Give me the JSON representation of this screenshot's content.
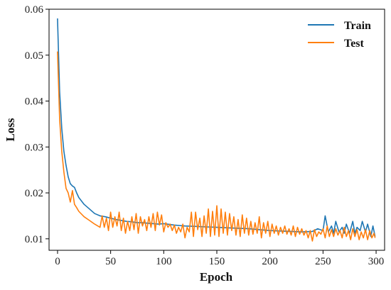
{
  "chart_data": {
    "type": "line",
    "xlabel": "Epoch",
    "ylabel": "Loss",
    "xlim": [
      -8,
      308
    ],
    "ylim": [
      0.0075,
      0.06
    ],
    "x_ticks": [
      0,
      50,
      100,
      150,
      200,
      250,
      300
    ],
    "y_ticks": [
      0.01,
      0.02,
      0.03,
      0.04,
      0.05,
      0.06
    ],
    "y_tick_labels": [
      "0.01",
      "0.02",
      "0.03",
      "0.04",
      "0.05",
      "0.06"
    ],
    "grid": false,
    "legend": {
      "position": "top-right",
      "frame": false
    },
    "series": [
      {
        "name": "Train",
        "color": "#1f77b4",
        "x": [
          0,
          2,
          4,
          6,
          8,
          10,
          12,
          14,
          16,
          18,
          20,
          25,
          30,
          35,
          40,
          45,
          50,
          55,
          60,
          65,
          70,
          75,
          80,
          85,
          90,
          95,
          100,
          110,
          120,
          130,
          140,
          150,
          160,
          170,
          180,
          190,
          200,
          210,
          220,
          230,
          240,
          245,
          250,
          252,
          255,
          258,
          260,
          262,
          265,
          268,
          270,
          272,
          275,
          278,
          280,
          282,
          285,
          287,
          290,
          292,
          295,
          297,
          299
        ],
        "y": [
          0.058,
          0.042,
          0.034,
          0.029,
          0.026,
          0.0235,
          0.022,
          0.0215,
          0.0212,
          0.02,
          0.019,
          0.0175,
          0.0165,
          0.0155,
          0.015,
          0.0148,
          0.0145,
          0.0142,
          0.014,
          0.0138,
          0.0137,
          0.0135,
          0.0135,
          0.0134,
          0.0133,
          0.0132,
          0.0133,
          0.013,
          0.0128,
          0.0127,
          0.0126,
          0.0125,
          0.0124,
          0.0123,
          0.0122,
          0.012,
          0.0118,
          0.0117,
          0.0116,
          0.0115,
          0.0116,
          0.0122,
          0.0118,
          0.015,
          0.0115,
          0.0128,
          0.0112,
          0.0138,
          0.0115,
          0.0125,
          0.0112,
          0.0132,
          0.0112,
          0.0138,
          0.0112,
          0.0125,
          0.0118,
          0.0138,
          0.0115,
          0.0132,
          0.0105,
          0.0128,
          0.0105
        ]
      },
      {
        "name": "Test",
        "color": "#ff7f0e",
        "x": [
          0,
          2,
          4,
          6,
          8,
          10,
          12,
          14,
          16,
          18,
          20,
          25,
          30,
          35,
          40,
          42,
          44,
          46,
          48,
          50,
          52,
          54,
          56,
          58,
          60,
          62,
          64,
          66,
          68,
          70,
          72,
          74,
          76,
          78,
          80,
          82,
          84,
          86,
          88,
          90,
          92,
          94,
          96,
          98,
          100,
          102,
          104,
          106,
          108,
          110,
          112,
          114,
          116,
          118,
          120,
          122,
          124,
          126,
          128,
          130,
          132,
          134,
          136,
          138,
          140,
          142,
          144,
          146,
          148,
          150,
          152,
          154,
          156,
          158,
          160,
          162,
          164,
          166,
          168,
          170,
          172,
          174,
          176,
          178,
          180,
          182,
          184,
          186,
          188,
          190,
          192,
          194,
          196,
          198,
          200,
          202,
          204,
          206,
          208,
          210,
          212,
          214,
          216,
          218,
          220,
          222,
          224,
          226,
          228,
          230,
          232,
          234,
          236,
          238,
          240,
          242,
          244,
          246,
          248,
          250,
          252,
          254,
          256,
          258,
          260,
          262,
          264,
          266,
          268,
          270,
          272,
          274,
          276,
          278,
          280,
          282,
          284,
          286,
          288,
          290,
          292,
          294,
          296,
          298,
          299
        ],
        "y": [
          0.0508,
          0.036,
          0.029,
          0.0245,
          0.021,
          0.02,
          0.018,
          0.0205,
          0.0175,
          0.0168,
          0.016,
          0.0148,
          0.014,
          0.0132,
          0.0125,
          0.015,
          0.0125,
          0.0145,
          0.0118,
          0.0158,
          0.0125,
          0.0148,
          0.0128,
          0.0158,
          0.0118,
          0.0145,
          0.0112,
          0.0138,
          0.0118,
          0.0148,
          0.012,
          0.0155,
          0.0112,
          0.0148,
          0.0128,
          0.0142,
          0.0118,
          0.0148,
          0.0125,
          0.0155,
          0.0118,
          0.0158,
          0.013,
          0.0152,
          0.0115,
          0.0135,
          0.0125,
          0.0132,
          0.0118,
          0.013,
          0.0112,
          0.0125,
          0.0115,
          0.0132,
          0.0102,
          0.0125,
          0.0115,
          0.0158,
          0.0105,
          0.0158,
          0.012,
          0.0145,
          0.0105,
          0.015,
          0.0112,
          0.0165,
          0.0105,
          0.016,
          0.0108,
          0.0172,
          0.0105,
          0.0165,
          0.0112,
          0.0158,
          0.0108,
          0.0155,
          0.0118,
          0.0148,
          0.0108,
          0.0142,
          0.0105,
          0.0152,
          0.0112,
          0.0145,
          0.0108,
          0.0138,
          0.011,
          0.0135,
          0.0112,
          0.0148,
          0.0102,
          0.0135,
          0.0112,
          0.0138,
          0.0105,
          0.0132,
          0.0112,
          0.0128,
          0.0108,
          0.0125,
          0.0112,
          0.0128,
          0.011,
          0.0122,
          0.0108,
          0.0128,
          0.0105,
          0.0125,
          0.011,
          0.0122,
          0.0108,
          0.0118,
          0.0102,
          0.0118,
          0.0095,
          0.012,
          0.0105,
          0.0115,
          0.011,
          0.0122,
          0.0102,
          0.0128,
          0.0105,
          0.012,
          0.0105,
          0.0122,
          0.0108,
          0.0118,
          0.0102,
          0.0125,
          0.0105,
          0.0118,
          0.0098,
          0.0122,
          0.0105,
          0.012,
          0.0098,
          0.0115,
          0.0102,
          0.012,
          0.0098,
          0.0118,
          0.0102,
          0.0112,
          0.0102
        ]
      }
    ]
  }
}
